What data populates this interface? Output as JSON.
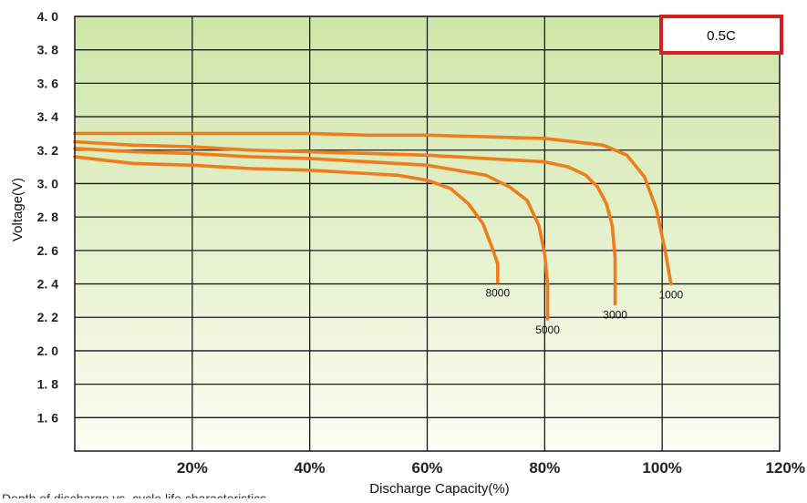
{
  "chart_data": {
    "type": "line",
    "xlabel": "Discharge Capacity(%)",
    "ylabel": "Voltage(V)",
    "xlim": [
      0,
      120
    ],
    "ylim": [
      1.4,
      4.0
    ],
    "x_ticks": [
      20,
      40,
      60,
      80,
      100,
      120
    ],
    "x_tick_labels": [
      "20%",
      "40%",
      "60%",
      "80%",
      "100%",
      "120%"
    ],
    "y_ticks": [
      1.6,
      1.8,
      2.0,
      2.2,
      2.4,
      2.6,
      2.8,
      3.0,
      3.2,
      3.4,
      3.6,
      3.8,
      4.0
    ],
    "y_tick_labels": [
      "1. 6",
      "1. 8",
      "2. 0",
      "2. 2",
      "2. 4",
      "2. 6",
      "2. 8",
      "3. 0",
      "3. 2",
      "3. 4",
      "3. 6",
      "3. 8",
      "4. 0"
    ],
    "grid": true,
    "legend_box": {
      "text": "0.5C",
      "position": "top-right"
    },
    "series": [
      {
        "name": "1000",
        "x": [
          0,
          10,
          20,
          30,
          40,
          50,
          60,
          70,
          80,
          90,
          94,
          97,
          99,
          100.5,
          101.5
        ],
        "y": [
          3.3,
          3.3,
          3.3,
          3.3,
          3.3,
          3.29,
          3.29,
          3.28,
          3.27,
          3.23,
          3.17,
          3.04,
          2.85,
          2.6,
          2.4
        ]
      },
      {
        "name": "3000",
        "x": [
          0,
          10,
          20,
          30,
          40,
          50,
          60,
          70,
          80,
          84,
          87,
          89,
          90.5,
          91.5,
          92,
          92
        ],
        "y": [
          3.25,
          3.23,
          3.22,
          3.2,
          3.19,
          3.18,
          3.17,
          3.15,
          3.13,
          3.1,
          3.05,
          2.98,
          2.88,
          2.75,
          2.55,
          2.28
        ]
      },
      {
        "name": "5000",
        "x": [
          0,
          10,
          20,
          30,
          40,
          50,
          60,
          70,
          74,
          77,
          79,
          80,
          80.5,
          80.5
        ],
        "y": [
          3.21,
          3.19,
          3.18,
          3.16,
          3.15,
          3.13,
          3.11,
          3.05,
          2.98,
          2.9,
          2.75,
          2.58,
          2.4,
          2.19
        ]
      },
      {
        "name": "8000",
        "x": [
          0,
          5,
          10,
          20,
          30,
          40,
          50,
          55,
          60,
          64,
          67,
          69.5,
          71,
          72,
          72
        ],
        "y": [
          3.16,
          3.14,
          3.12,
          3.11,
          3.09,
          3.08,
          3.06,
          3.05,
          3.02,
          2.97,
          2.88,
          2.76,
          2.62,
          2.52,
          2.41
        ]
      }
    ]
  },
  "caption": "Depth of discharge vs. cycle life characteristics"
}
